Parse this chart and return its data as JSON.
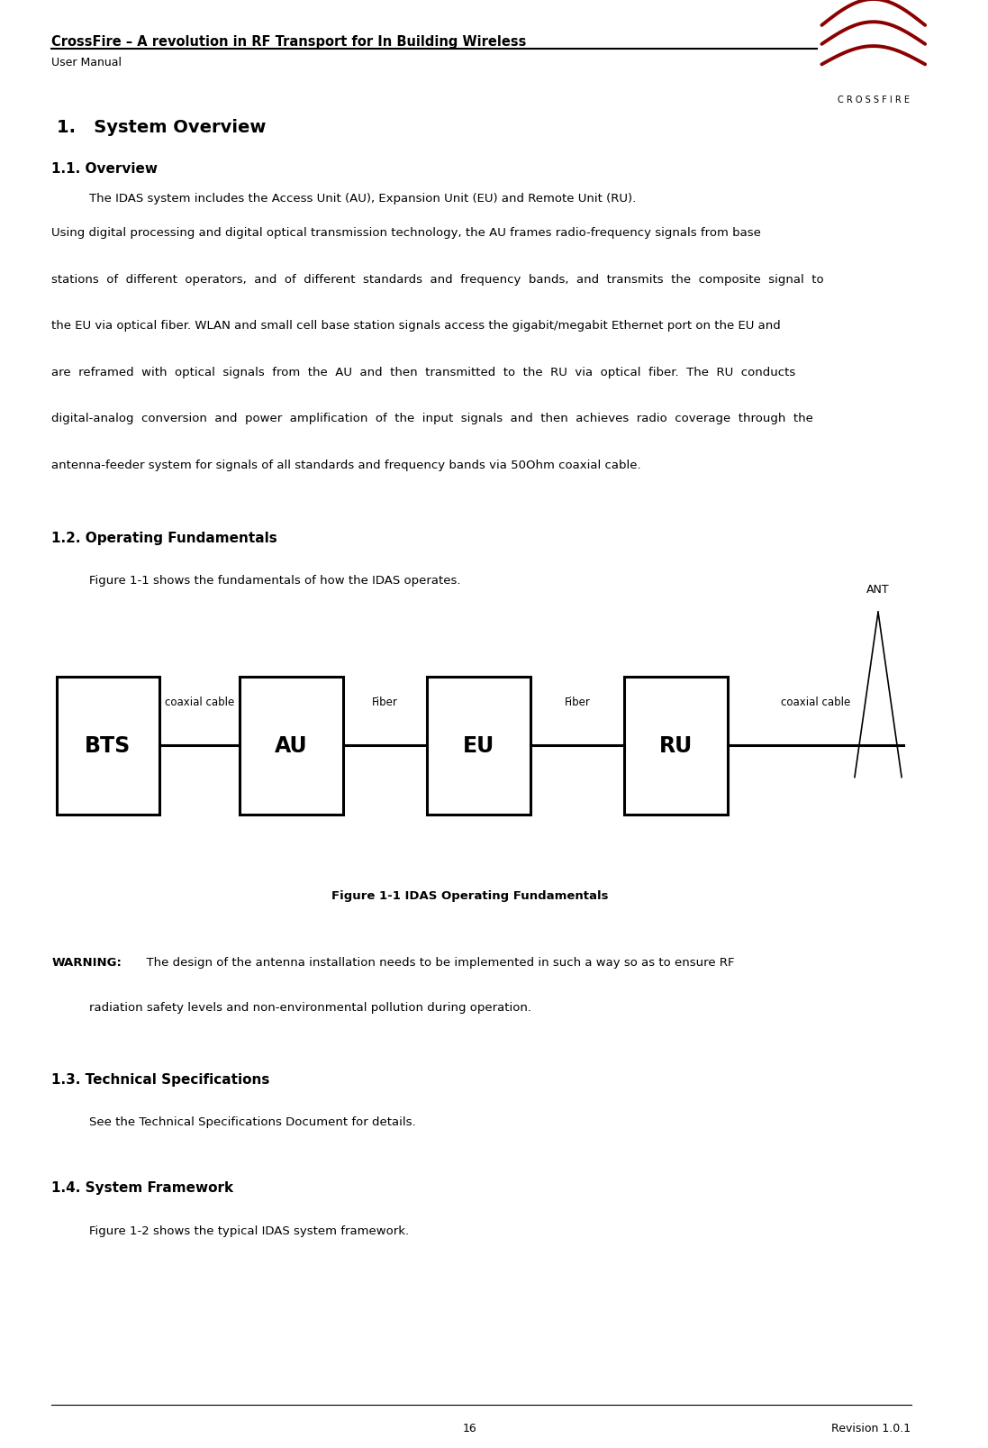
{
  "page_width": 10.97,
  "page_height": 16.08,
  "bg_color": "#ffffff",
  "header_title": "CrossFire – A revolution in RF Transport for In Building Wireless",
  "header_subtitle": "User Manual",
  "header_right": "C R O S S F I R E",
  "footer_page": "16",
  "footer_right": "Revision 1.0.1",
  "section1_title": "1.   System Overview",
  "section11_title": "1.1. Overview",
  "section11_body1": "The IDAS system includes the Access Unit (AU), Expansion Unit (EU) and Remote Unit (RU).",
  "section12_title": "1.2. Operating Fundamentals",
  "section12_body": "Figure 1-1 shows the fundamentals of how the IDAS operates.",
  "ant_label": "ANT",
  "figure_caption": "Figure 1-1 IDAS Operating Fundamentals",
  "section13_title": "1.3. Technical Specifications",
  "section13_body": "See the Technical Specifications Document for details.",
  "section14_title": "1.4. System Framework",
  "section14_body": "Figure 1-2 shows the typical IDAS system framework.",
  "logo_color": "#8B0000",
  "body2_lines": [
    "Using digital processing and digital optical transmission technology, the AU frames radio-frequency signals from base",
    "stations  of  different  operators,  and  of  different  standards  and  frequency  bands,  and  transmits  the  composite  signal  to",
    "the EU via optical fiber. WLAN and small cell base station signals access the gigabit/megabit Ethernet port on the EU and",
    "are  reframed  with  optical  signals  from  the  AU  and  then  transmitted  to  the  RU  via  optical  fiber.  The  RU  conducts",
    "digital-analog  conversion  and  power  amplification  of  the  input  signals  and  then  achieves  radio  coverage  through  the",
    "antenna-feeder system for signals of all standards and frequency bands via 50Ohm coaxial cable."
  ],
  "warning_line1": "  The design of the antenna installation needs to be implemented in such a way so as to ensure RF",
  "warning_line2": "radiation safety levels and non-environmental pollution during operation."
}
